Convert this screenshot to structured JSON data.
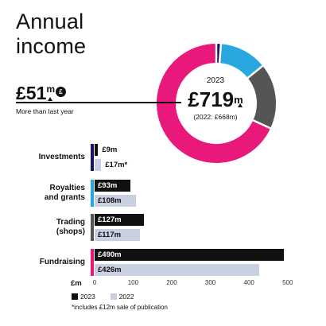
{
  "title_line1": "Annual",
  "title_line2": "income",
  "increase": {
    "amount": "£51",
    "unit": "m",
    "description": "More than last year",
    "coin_label": "£"
  },
  "donut_center": {
    "year": "2023",
    "total": "£719",
    "unit": "m",
    "previous": "(2022: £668m)"
  },
  "colors": {
    "fundraising": "#e8197b",
    "investments": "#1a1464",
    "royalties": "#29a8e0",
    "trading": "#555555",
    "year_2023": "#111111",
    "year_2022": "#c8cfe1"
  },
  "chart_data": {
    "type": "bar",
    "orientation": "horizontal",
    "currency_label": "£m",
    "categories": [
      "Investments",
      "Royalties and grants",
      "Trading (shops)",
      "Fundraising"
    ],
    "category_lines": [
      [
        "Investments"
      ],
      [
        "Royalties",
        "and grants"
      ],
      [
        "Trading",
        "(shops)"
      ],
      [
        "Fundraising"
      ]
    ],
    "series": [
      {
        "name": "2023",
        "values": [
          9,
          93,
          127,
          490
        ],
        "labels": [
          "£9m",
          "£93m",
          "£127m",
          "£490m"
        ]
      },
      {
        "name": "2022",
        "values": [
          17,
          108,
          117,
          426
        ],
        "labels": [
          "£17m*",
          "£108m",
          "£117m",
          "£426m"
        ]
      }
    ],
    "xlim": [
      0,
      500
    ],
    "xticks": [
      0,
      100,
      200,
      300,
      400,
      500
    ],
    "legend": "bottom",
    "footnote": "*includes £12m sale of publication",
    "donut": {
      "type": "pie",
      "year": "2023",
      "slices": [
        {
          "category": "Investments",
          "value": 9
        },
        {
          "category": "Royalties and grants",
          "value": 93
        },
        {
          "category": "Trading (shops)",
          "value": 127
        },
        {
          "category": "Fundraising",
          "value": 490
        }
      ]
    }
  }
}
